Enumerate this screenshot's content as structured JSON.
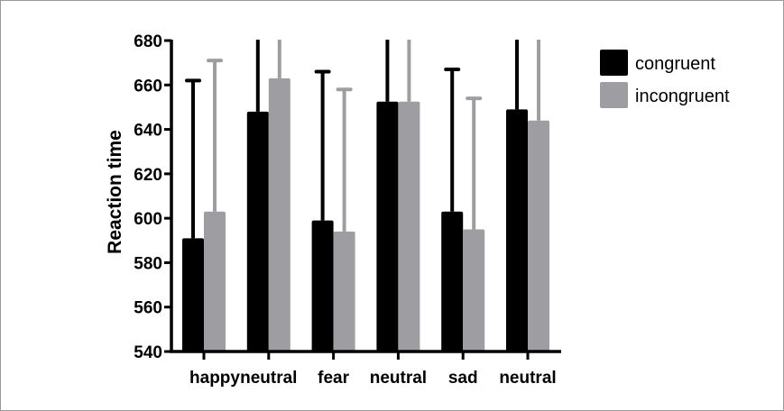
{
  "chart_data": {
    "type": "bar",
    "title": "",
    "xlabel": "",
    "ylabel": "Reaction time",
    "ylim": [
      540,
      680
    ],
    "yticks": [
      540,
      560,
      580,
      600,
      620,
      640,
      660,
      680
    ],
    "categories": [
      "happy",
      "neutral",
      "fear",
      "neutral",
      "sad",
      "neutral"
    ],
    "series": [
      {
        "name": "congruent",
        "color": "#000000",
        "values": [
          591,
          648,
          599,
          652.5,
          603,
          649
        ],
        "error_top": [
          662,
          null,
          666,
          null,
          667,
          null
        ]
      },
      {
        "name": "incongruent",
        "color": "#9e9ea2",
        "values": [
          603,
          663,
          594,
          652.5,
          595,
          644
        ],
        "error_top": [
          671,
          null,
          658,
          null,
          654,
          null
        ]
      }
    ],
    "error_bar_note": "null = error bar extends beyond top of axis",
    "legend": "top-right",
    "grid": false
  }
}
